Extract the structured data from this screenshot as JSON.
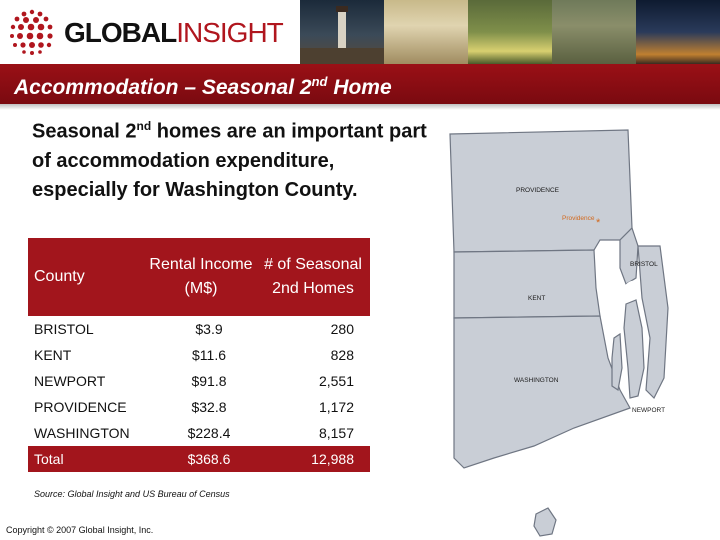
{
  "brand": {
    "name_part1": "GLOBAL",
    "name_part2": "INSIGHT"
  },
  "title": {
    "main": "Accommodation – Seasonal 2",
    "sup": "nd",
    "rest": " Home"
  },
  "intro": {
    "part1": "Seasonal 2",
    "sup": "nd",
    "part2": " homes are an important part of accommodation expenditure, especially for Washington County."
  },
  "table": {
    "headers": [
      "County",
      "Rental Income (M$)",
      "# of Seasonal 2nd Homes"
    ],
    "rows": [
      {
        "county": "BRISTOL",
        "income": "$3.9",
        "homes": "280"
      },
      {
        "county": "KENT",
        "income": "$11.6",
        "homes": "828"
      },
      {
        "county": "NEWPORT",
        "income": "$91.8",
        "homes": "2,551"
      },
      {
        "county": "PROVIDENCE",
        "income": "$32.8",
        "homes": "1,172"
      },
      {
        "county": "WASHINGTON",
        "income": "$228.4",
        "homes": "8,157"
      }
    ],
    "total": {
      "county": "Total",
      "income": "$368.6",
      "homes": "12,988"
    }
  },
  "source": "Source: Global Insight and US Bureau of Census",
  "copyright": "Copyright © 2007 Global Insight, Inc.",
  "map": {
    "labels": {
      "providence_county": "PROVIDENCE",
      "providence_city": "Providence",
      "bristol": "BRISTOL",
      "kent": "KENT",
      "washington": "WASHINGTON",
      "newport": "NEWPORT"
    }
  },
  "colors": {
    "accent": "#a2151c",
    "map_fill": "#c9ced6",
    "map_stroke": "#6f7683",
    "city": "#d2691e"
  }
}
